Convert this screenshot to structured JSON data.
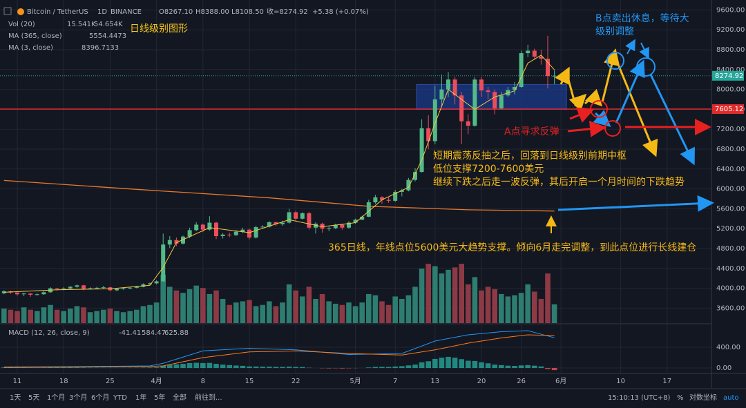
{
  "chart_data": {
    "type": "candlestick",
    "header": {
      "symbol": "Bitcoin / TetherUS",
      "interval": "1D",
      "exchange": "BINANCE",
      "open": "O8267.10",
      "high": "H8388.00",
      "low": "L8108.50",
      "close": "收=8274.92",
      "change": "+5.38 (+0.07%)"
    },
    "legend": [
      {
        "name": "Vol (20)",
        "values": [
          "15.541K",
          "54.654K"
        ]
      },
      {
        "name": "MA (365, close)",
        "values": [
          "5554.4473"
        ]
      },
      {
        "name": "MA (3, close)",
        "values": [
          "8396.7133"
        ]
      }
    ],
    "annotations": {
      "title": "日线级别图形",
      "b_point": [
        "B点卖出休息，等待大",
        "级别调整"
      ],
      "a_point": "A点寻求反弹",
      "middle": [
        "短期震荡反抽之后，回落到日线级别前期中枢",
        "低位支撑7200-7600美元",
        "继续下跌之后走一波反弹，其后开启一个月时间的下跌趋势"
      ],
      "ma365_note": "365日线，年线点位5600美元大趋势支撑。倾向6月走完调整，到此点位进行长线建仓"
    },
    "ylim": [
      3300,
      9800
    ],
    "yticks": [
      {
        "value": 3600,
        "label": "3600.00"
      },
      {
        "value": 4000,
        "label": "4000.00"
      },
      {
        "value": 4400,
        "label": "4400.00"
      },
      {
        "value": 4800,
        "label": "4800.00"
      },
      {
        "value": 5200,
        "label": "5200.00"
      },
      {
        "value": 5600,
        "label": "5600.00"
      },
      {
        "value": 6000,
        "label": "6000.00"
      },
      {
        "value": 6400,
        "label": "6400.00"
      },
      {
        "value": 6800,
        "label": "6800.00"
      },
      {
        "value": 7200,
        "label": "7200.00"
      },
      {
        "value": 7600,
        "label": "7600.00"
      },
      {
        "value": 8000,
        "label": "8000.00"
      },
      {
        "value": 8400,
        "label": "8400.00"
      },
      {
        "value": 8800,
        "label": "8800.00"
      },
      {
        "value": 9200,
        "label": "9200.00"
      },
      {
        "value": 9600,
        "label": "9600.00"
      }
    ],
    "xticks": [
      {
        "value": 2,
        "label": "11"
      },
      {
        "value": 9,
        "label": "18"
      },
      {
        "value": 16,
        "label": "25"
      },
      {
        "value": 23,
        "label": "4月"
      },
      {
        "value": 30,
        "label": "8"
      },
      {
        "value": 37,
        "label": "15"
      },
      {
        "value": 44,
        "label": "22"
      },
      {
        "value": 53,
        "label": "5月"
      },
      {
        "value": 59,
        "label": "7"
      },
      {
        "value": 65,
        "label": "13"
      },
      {
        "value": 72,
        "label": "20"
      },
      {
        "value": 78,
        "label": "26"
      },
      {
        "value": 84,
        "label": "6月"
      },
      {
        "value": 93,
        "label": "10"
      },
      {
        "value": 100,
        "label": "17"
      }
    ],
    "grid": true,
    "colors": {
      "up": "#53b987",
      "down": "#eb4d5c",
      "up_volume": "#2d7d70",
      "down_volume": "#8c3a45",
      "ma365": "#e8782a",
      "ma3": "#f3c742",
      "macd": "#2196f3",
      "signal": "#ff7a1a",
      "zone": "#1c3a8a",
      "price_line": "#e02b2b"
    },
    "price_line": 7605.12,
    "zone": [
      7600,
      8100
    ],
    "candles": [
      [
        3900,
        3960,
        3880,
        3940
      ],
      [
        3940,
        3950,
        3890,
        3915
      ],
      [
        3915,
        3920,
        3850,
        3880
      ],
      [
        3880,
        3910,
        3840,
        3895
      ],
      [
        3895,
        3900,
        3830,
        3870
      ],
      [
        3870,
        3900,
        3850,
        3880
      ],
      [
        3880,
        3940,
        3870,
        3920
      ],
      [
        3920,
        4020,
        3910,
        4000
      ],
      [
        4000,
        4010,
        3950,
        3985
      ],
      [
        3985,
        4020,
        3960,
        3995
      ],
      [
        3995,
        4050,
        3980,
        4030
      ],
      [
        4030,
        4080,
        4010,
        4060
      ],
      [
        4060,
        4070,
        3960,
        3990
      ],
      [
        3990,
        4020,
        3970,
        4000
      ],
      [
        4000,
        4030,
        3980,
        4010
      ],
      [
        4010,
        4050,
        3990,
        4020
      ],
      [
        4020,
        4030,
        3940,
        3960
      ],
      [
        3960,
        4000,
        3940,
        3990
      ],
      [
        3990,
        4010,
        3970,
        4000
      ],
      [
        4000,
        4030,
        3980,
        4010
      ],
      [
        4010,
        4050,
        4000,
        4030
      ],
      [
        4030,
        4100,
        4020,
        4080
      ],
      [
        4080,
        4120,
        4060,
        4100
      ],
      [
        4100,
        4160,
        4080,
        4140
      ],
      [
        4140,
        5100,
        4130,
        4880
      ],
      [
        4880,
        5050,
        4810,
        4970
      ],
      [
        4970,
        5020,
        4850,
        4900
      ],
      [
        4900,
        5060,
        4880,
        5040
      ],
      [
        5040,
        5220,
        5010,
        5170
      ],
      [
        5170,
        5330,
        5150,
        5280
      ],
      [
        5280,
        5300,
        5130,
        5180
      ],
      [
        5180,
        5450,
        5160,
        5320
      ],
      [
        5320,
        5340,
        4990,
        5050
      ],
      [
        5050,
        5110,
        5000,
        5080
      ],
      [
        5080,
        5120,
        5030,
        5070
      ],
      [
        5070,
        5170,
        5050,
        5140
      ],
      [
        5140,
        5220,
        5110,
        5180
      ],
      [
        5180,
        5200,
        4980,
        5020
      ],
      [
        5020,
        5260,
        5000,
        5230
      ],
      [
        5230,
        5270,
        5200,
        5240
      ],
      [
        5240,
        5350,
        5220,
        5330
      ],
      [
        5330,
        5340,
        5250,
        5290
      ],
      [
        5290,
        5360,
        5260,
        5320
      ],
      [
        5320,
        5600,
        5300,
        5530
      ],
      [
        5530,
        5560,
        5350,
        5400
      ],
      [
        5400,
        5530,
        5380,
        5510
      ],
      [
        5510,
        5540,
        5180,
        5220
      ],
      [
        5220,
        5330,
        5100,
        5300
      ],
      [
        5300,
        5320,
        5120,
        5200
      ],
      [
        5200,
        5240,
        5150,
        5210
      ],
      [
        5210,
        5300,
        5190,
        5280
      ],
      [
        5280,
        5290,
        5180,
        5220
      ],
      [
        5220,
        5350,
        5200,
        5320
      ],
      [
        5320,
        5400,
        5300,
        5380
      ],
      [
        5380,
        5460,
        5370,
        5440
      ],
      [
        5440,
        5780,
        5430,
        5730
      ],
      [
        5730,
        5880,
        5700,
        5830
      ],
      [
        5830,
        5850,
        5700,
        5780
      ],
      [
        5780,
        5830,
        5720,
        5760
      ],
      [
        5760,
        5980,
        5740,
        5940
      ],
      [
        5940,
        6000,
        5850,
        5970
      ],
      [
        5970,
        6220,
        5950,
        6180
      ],
      [
        6180,
        6420,
        6150,
        6340
      ],
      [
        6340,
        7400,
        6330,
        7220
      ],
      [
        7220,
        7480,
        6800,
        6960
      ],
      [
        6960,
        8080,
        6900,
        7800
      ],
      [
        7800,
        8300,
        7650,
        8000
      ],
      [
        8000,
        8350,
        7850,
        8200
      ],
      [
        8200,
        8250,
        7700,
        7880
      ],
      [
        7880,
        7950,
        6900,
        7360
      ],
      [
        7360,
        7500,
        7100,
        7270
      ],
      [
        7270,
        8250,
        7250,
        8200
      ],
      [
        8200,
        8250,
        7850,
        7980
      ],
      [
        7980,
        8050,
        7800,
        7950
      ],
      [
        7950,
        8000,
        7500,
        7620
      ],
      [
        7620,
        7950,
        7600,
        7880
      ],
      [
        7880,
        8050,
        7850,
        7990
      ],
      [
        7990,
        8150,
        7900,
        8050
      ],
      [
        8050,
        8780,
        8030,
        8730
      ],
      [
        8730,
        8900,
        8650,
        8780
      ],
      [
        8780,
        8820,
        8600,
        8660
      ],
      [
        8660,
        8800,
        8500,
        8620
      ],
      [
        8620,
        9080,
        8020,
        8270
      ],
      [
        8267.1,
        8388,
        8108.5,
        8274.92
      ]
    ],
    "volume_lim": [
      0,
      267
    ],
    "volume": [
      12,
      11,
      10,
      13,
      11,
      10,
      13,
      15,
      11,
      10,
      12,
      14,
      13,
      9,
      10,
      11,
      12,
      10,
      9,
      10,
      11,
      14,
      15,
      17,
      40,
      30,
      27,
      25,
      28,
      31,
      29,
      24,
      27,
      20,
      15,
      17,
      18,
      19,
      14,
      15,
      18,
      14,
      17,
      32,
      27,
      22,
      30,
      20,
      24,
      18,
      16,
      15,
      17,
      14,
      17,
      24,
      23,
      18,
      15,
      22,
      20,
      23,
      30,
      45,
      49,
      47,
      41,
      44,
      46,
      49,
      32,
      38,
      27,
      30,
      28,
      24,
      22,
      23,
      25,
      32,
      26,
      20,
      41,
      15.541
    ],
    "ma365": {
      "x": [
        0,
        20,
        40,
        55,
        70,
        83
      ],
      "values": [
        6170,
        5990,
        5820,
        5650,
        5580,
        5554.45
      ]
    },
    "ma3": {
      "x": [
        0,
        8,
        16,
        22,
        24,
        26,
        31,
        37,
        43,
        48,
        53,
        57,
        61,
        63,
        65,
        67,
        69,
        71,
        74,
        77,
        79,
        81,
        83
      ],
      "values": [
        3920,
        3970,
        3990,
        4060,
        4420,
        4920,
        5220,
        5120,
        5380,
        5240,
        5320,
        5780,
        6030,
        6580,
        7320,
        8000,
        7800,
        7600,
        7850,
        7970,
        8530,
        8690,
        8396.71
      ]
    },
    "macd_pane": {
      "title": "MACD (12, 26, close, 9)",
      "legend_values": [
        "-41.41",
        "584.47",
        "625.88"
      ],
      "ylim": [
        -93,
        840
      ],
      "yticks": [
        {
          "value": 0,
          "label": "0.00"
        },
        {
          "value": 400,
          "label": "400.00"
        }
      ],
      "histogram": [
        10,
        8,
        6,
        5,
        3,
        2,
        3,
        5,
        6,
        6,
        7,
        8,
        6,
        5,
        5,
        4,
        3,
        3,
        3,
        4,
        5,
        7,
        9,
        12,
        40,
        60,
        70,
        80,
        95,
        100,
        95,
        98,
        80,
        65,
        55,
        48,
        42,
        30,
        28,
        25,
        25,
        22,
        20,
        26,
        20,
        18,
        5,
        0,
        -5,
        -8,
        -6,
        -10,
        -6,
        -3,
        0,
        10,
        20,
        22,
        20,
        28,
        35,
        50,
        65,
        110,
        130,
        175,
        200,
        215,
        200,
        170,
        140,
        135,
        110,
        90,
        65,
        55,
        45,
        40,
        50,
        55,
        45,
        30,
        -20,
        -41.41
      ],
      "macd": {
        "x": [
          0,
          10,
          22,
          24,
          30,
          37,
          44,
          52,
          60,
          65,
          70,
          75,
          79,
          83
        ],
        "values": [
          20,
          25,
          40,
          90,
          330,
          380,
          350,
          260,
          280,
          520,
          640,
          700,
          720,
          584.47
        ]
      },
      "signal": {
        "x": [
          0,
          10,
          22,
          24,
          30,
          37,
          44,
          52,
          60,
          65,
          70,
          75,
          79,
          83
        ],
        "values": [
          10,
          15,
          30,
          40,
          200,
          310,
          330,
          280,
          250,
          350,
          480,
          580,
          640,
          625.88
        ]
      }
    }
  },
  "toolbar": {
    "ranges": [
      "1天",
      "5天",
      "1个月",
      "3个月",
      "6个月",
      "YTD",
      "1年",
      "5年",
      "全部"
    ],
    "goto": "前往到...",
    "time": "15:10:13 (UTC+8)",
    "percent": "%",
    "log": "对数坐标",
    "auto": "auto"
  }
}
